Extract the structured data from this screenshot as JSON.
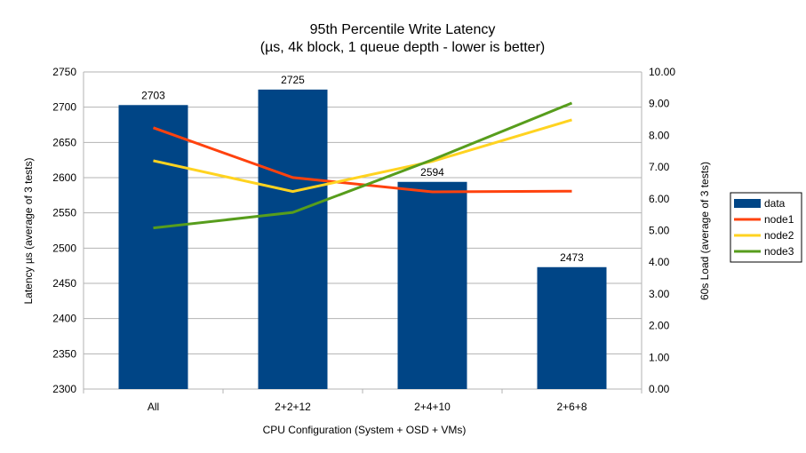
{
  "chart_data": {
    "type": "bar+line",
    "title": "95th Percentile Write Latency",
    "subtitle": "(µs, 4k block, 1 queue depth - lower is better)",
    "xlabel": "CPU Configuration (System + OSD + VMs)",
    "ylabel": "Latency µs (average of 3 tests)",
    "y2label": "60s Load (average of 3 tests)",
    "categories": [
      "All",
      "2+2+12",
      "2+4+10",
      "2+6+8"
    ],
    "ylim": [
      2300,
      2750
    ],
    "yticks": [
      2300,
      2350,
      2400,
      2450,
      2500,
      2550,
      2600,
      2650,
      2700,
      2750
    ],
    "y2lim": [
      0,
      10
    ],
    "y2ticks": [
      "0.00",
      "1.00",
      "2.00",
      "3.00",
      "4.00",
      "5.00",
      "6.00",
      "7.00",
      "8.00",
      "9.00",
      "10.00"
    ],
    "grid": true,
    "legend_position": "right",
    "bars": {
      "name": "data",
      "axis": "left",
      "color": "#004586",
      "values": [
        2703,
        2725,
        2594,
        2473
      ]
    },
    "series": [
      {
        "name": "node1",
        "axis": "right",
        "color": "#ff420e",
        "values": [
          8.24,
          6.67,
          6.22,
          6.24
        ]
      },
      {
        "name": "node2",
        "axis": "right",
        "color": "#ffd320",
        "values": [
          7.2,
          6.23,
          7.18,
          8.49
        ]
      },
      {
        "name": "node3",
        "axis": "right",
        "color": "#579d1c",
        "values": [
          5.08,
          5.57,
          7.23,
          9.02
        ]
      }
    ]
  }
}
